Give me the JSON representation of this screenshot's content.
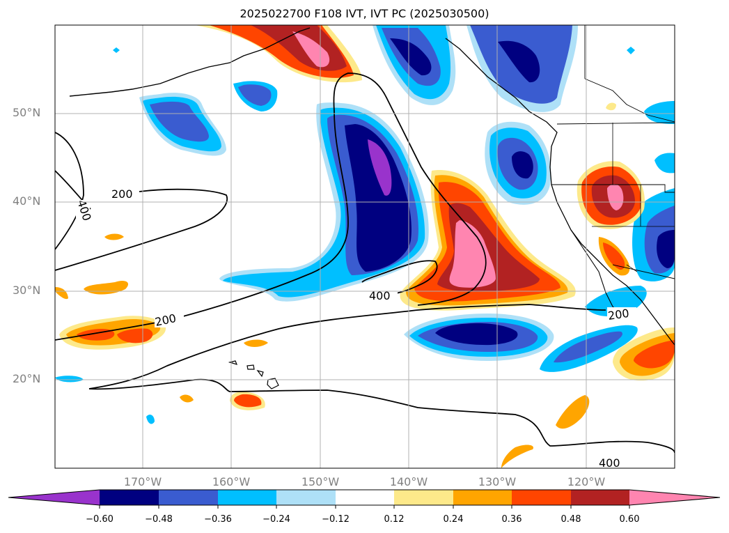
{
  "title": "2025022700 F108 IVT, IVT PC (2025030500)",
  "map": {
    "lat_labels": [
      "50°N",
      "40°N",
      "30°N",
      "20°N"
    ],
    "lon_labels": [
      "170°W",
      "160°W",
      "150°W",
      "140°W",
      "130°W",
      "120°W"
    ],
    "contour_labels": [
      "200",
      "400",
      "200",
      "400",
      "200",
      "400"
    ],
    "grid": true
  },
  "colorbar": {
    "ticks": [
      "−0.60",
      "−0.48",
      "−0.36",
      "−0.24",
      "−0.12",
      "0.12",
      "0.24",
      "0.36",
      "0.48",
      "0.60"
    ],
    "colors": [
      "#9933cc",
      "#000080",
      "#3a5cd0",
      "#00bfff",
      "#aee0f7",
      "#ffffff",
      "#fde98a",
      "#ffa500",
      "#ff4500",
      "#b22222",
      "#ff85b0"
    ]
  },
  "colors": {
    "neg_light": "#aee0f7",
    "neg_cyan": "#00bfff",
    "neg_blue": "#3a5cd0",
    "neg_navy": "#000080",
    "neg_purple": "#9933cc",
    "pos_yellow": "#fde98a",
    "pos_orange": "#ffa500",
    "pos_redorange": "#ff4500",
    "pos_red": "#b22222",
    "pos_pink": "#ff85b0",
    "gridline": "#b0b0b0"
  }
}
